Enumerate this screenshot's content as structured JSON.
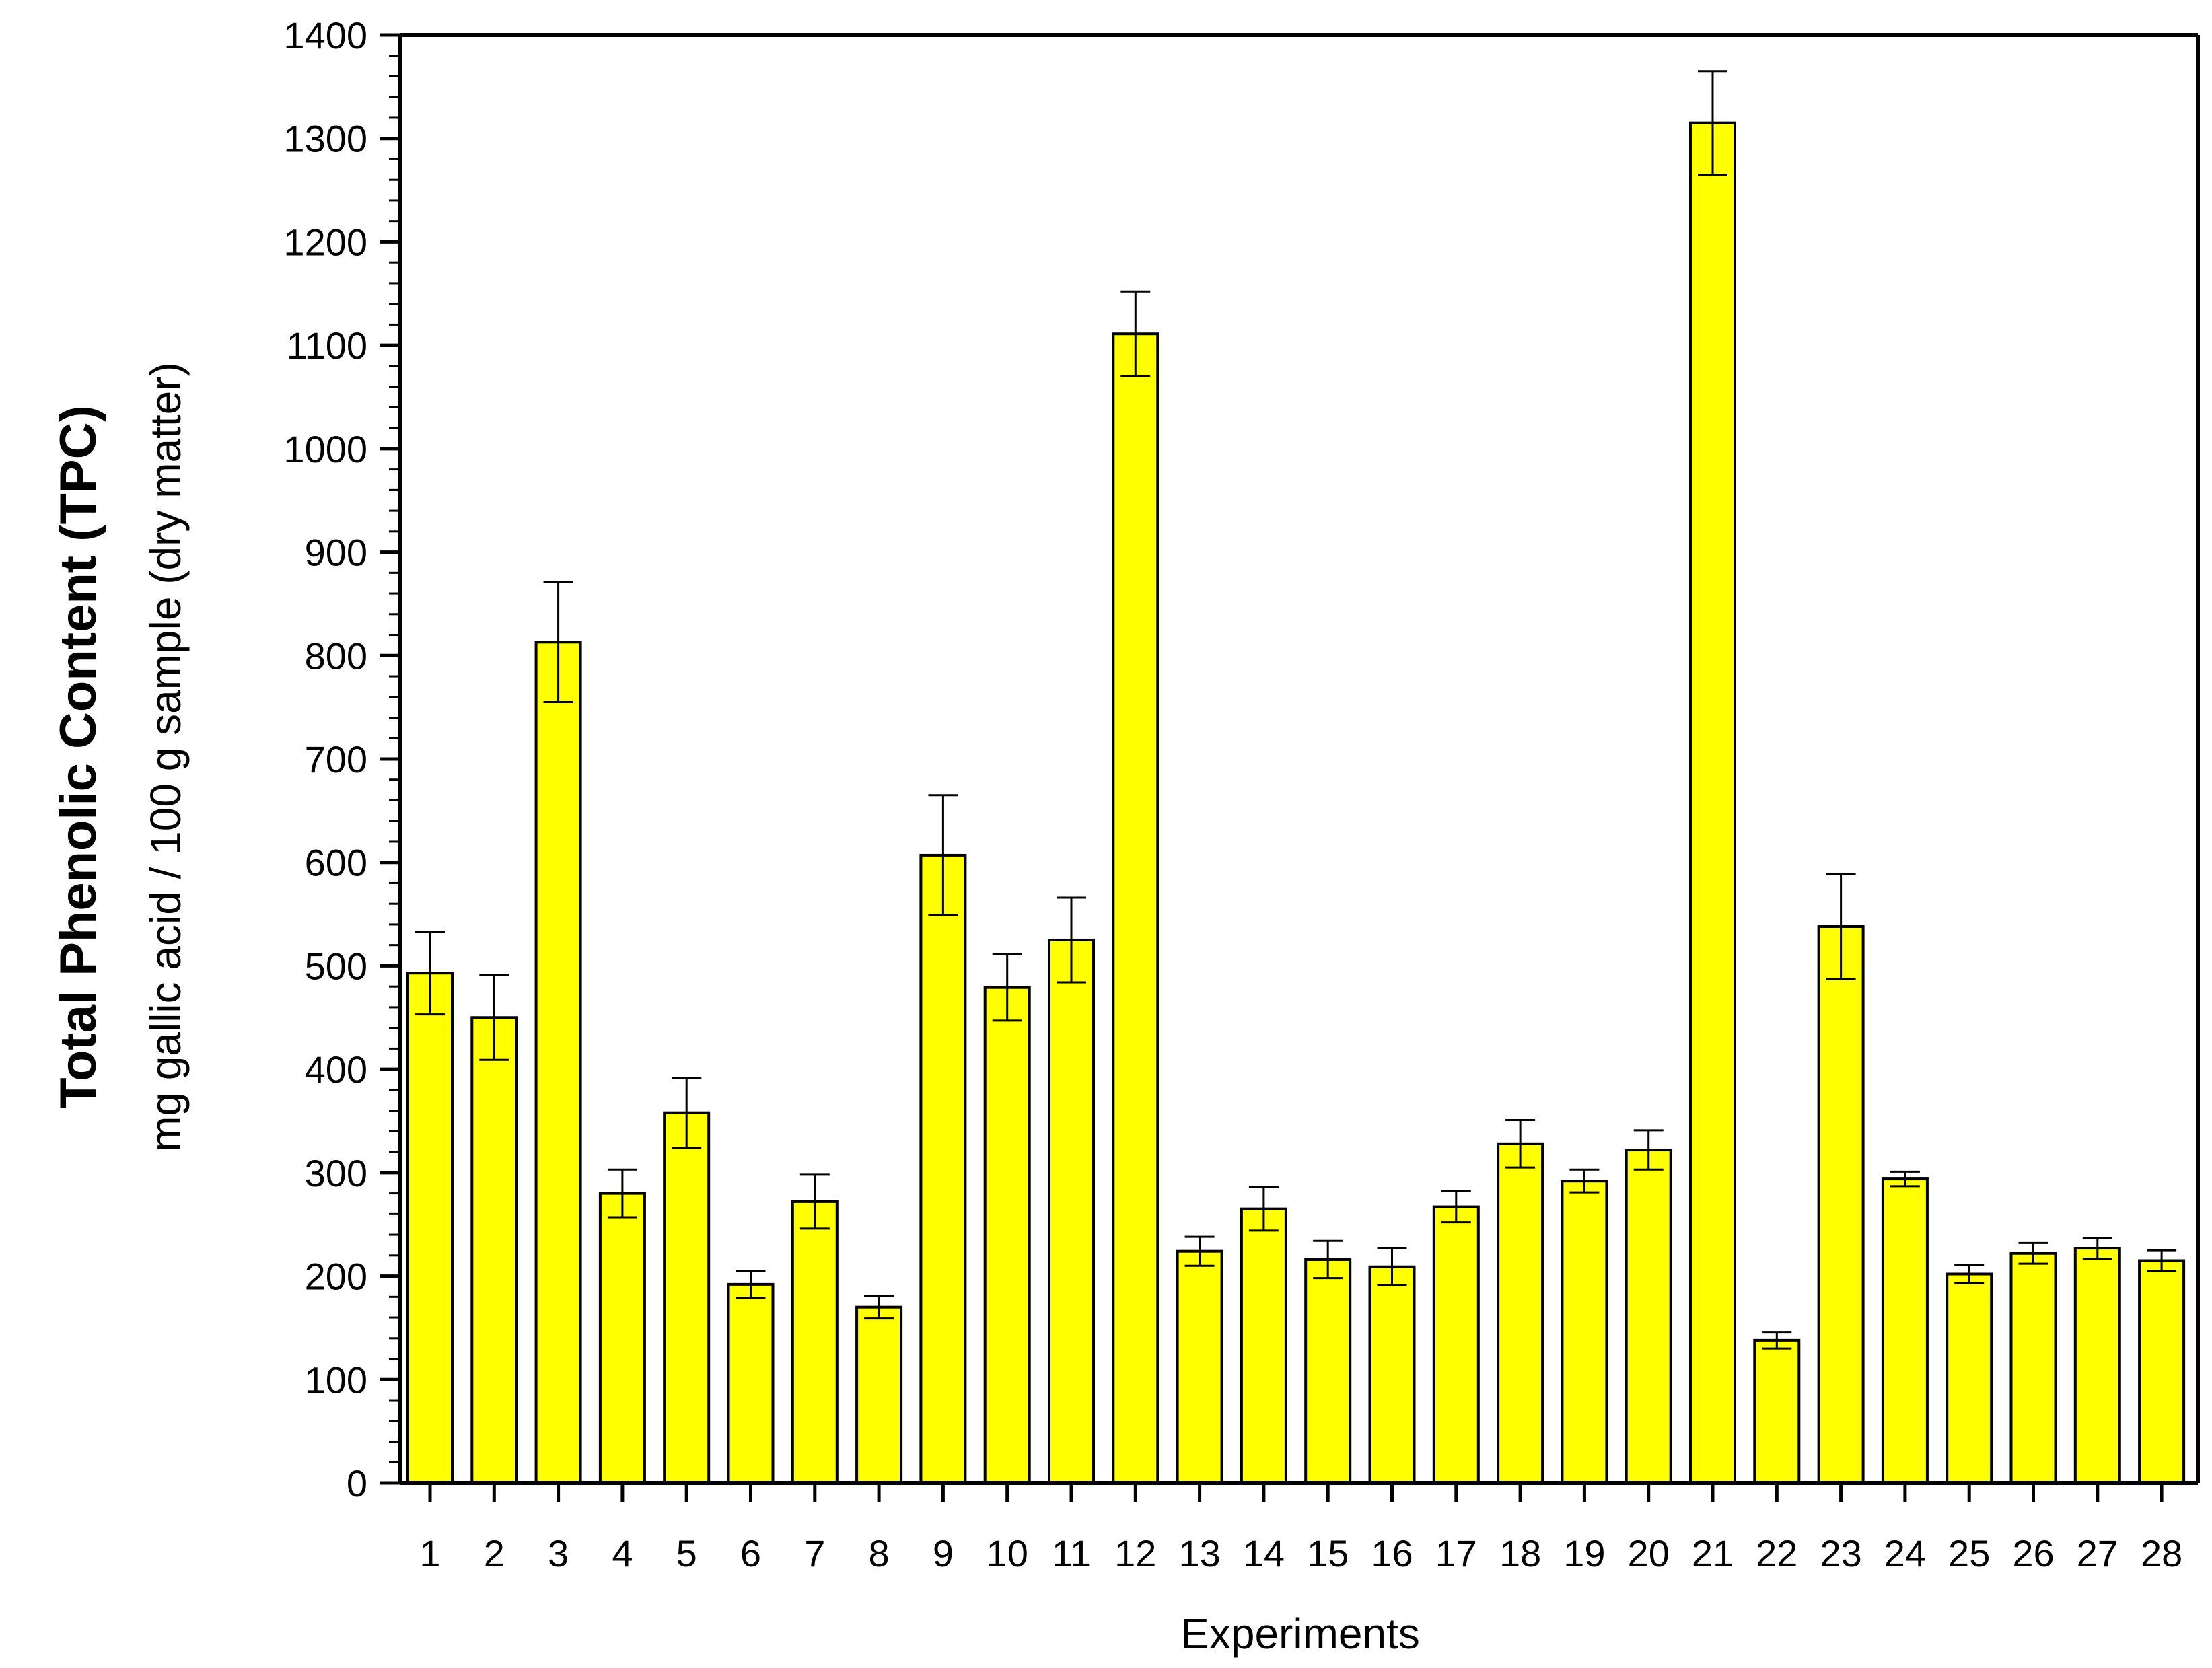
{
  "chart_data": {
    "type": "bar",
    "categories": [
      "1",
      "2",
      "3",
      "4",
      "5",
      "6",
      "7",
      "8",
      "9",
      "10",
      "11",
      "12",
      "13",
      "14",
      "15",
      "16",
      "17",
      "18",
      "19",
      "20",
      "21",
      "22",
      "23",
      "24",
      "25",
      "26",
      "27",
      "28"
    ],
    "values": [
      493,
      450,
      813,
      280,
      358,
      192,
      272,
      170,
      607,
      479,
      525,
      1111,
      224,
      265,
      216,
      209,
      267,
      328,
      292,
      322,
      1315,
      138,
      538,
      294,
      202,
      222,
      227,
      215
    ],
    "errors": [
      40,
      41,
      58,
      23,
      34,
      13,
      26,
      11,
      58,
      32,
      41,
      41,
      14,
      21,
      18,
      18,
      15,
      23,
      11,
      19,
      50,
      8,
      51,
      7,
      9,
      10,
      10,
      10
    ],
    "title": "",
    "xlabel": "Experiments",
    "ylabel": "Total Phenolic Content (TPC)",
    "ylabel_secondary": "mg gallic acid / 100 g sample (dry matter)",
    "ylim": [
      0,
      1400
    ],
    "yticks": [
      "0",
      "100",
      "200",
      "300",
      "400",
      "500",
      "600",
      "700",
      "800",
      "900",
      "1000",
      "1100",
      "1200",
      "1300",
      "1400"
    ],
    "grid": false,
    "legend": "none",
    "colors": {
      "bar_fill": "#ffff00",
      "bar_stroke": "#000000",
      "axis": "#000000"
    }
  }
}
